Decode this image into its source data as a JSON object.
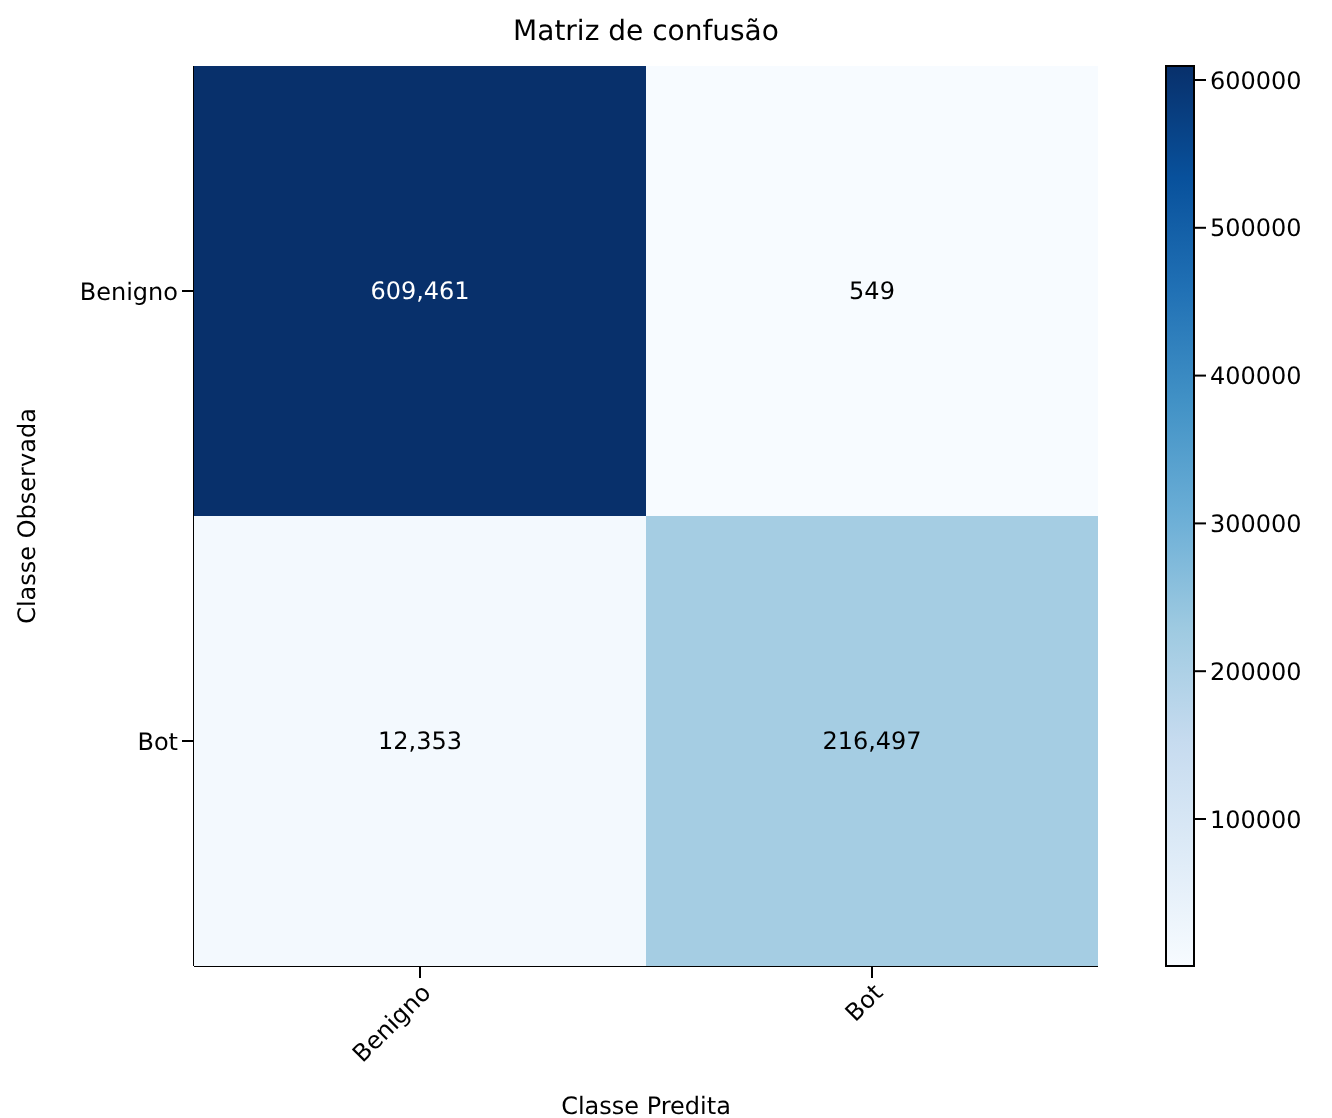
{
  "chart_data": {
    "type": "heatmap",
    "title": "Matriz de confusão",
    "xlabel": "Classe Predita",
    "ylabel": "Classe Observada",
    "categories": [
      "Benigno",
      "Bot"
    ],
    "y_categories": [
      "Benigno",
      "Bot"
    ],
    "cells": [
      [
        609461,
        549
      ],
      [
        12353,
        216497
      ]
    ],
    "cell_labels": [
      [
        "609,461",
        "549"
      ],
      [
        "12,353",
        "216,497"
      ]
    ],
    "clim": [
      549,
      609461
    ],
    "cticks": [
      100000,
      200000,
      300000,
      400000,
      500000,
      600000
    ]
  }
}
